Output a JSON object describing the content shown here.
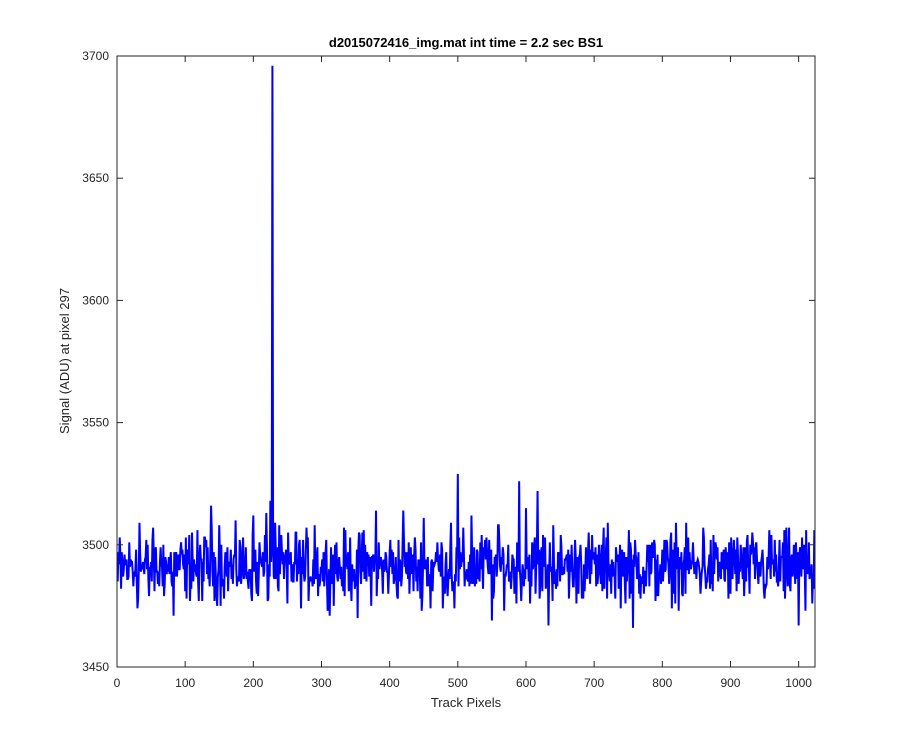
{
  "chart_data": {
    "type": "line",
    "title": "d2015072416_img.mat int time = 2.2 sec   BS1",
    "xlabel": "Track Pixels",
    "ylabel": "Signal (ADU) at pixel 297",
    "xlim": [
      0,
      1024
    ],
    "ylim": [
      3450,
      3700
    ],
    "xticks": [
      0,
      100,
      200,
      300,
      400,
      500,
      600,
      700,
      800,
      900,
      1000
    ],
    "yticks": [
      3450,
      3500,
      3550,
      3600,
      3650,
      3700
    ],
    "grid": false,
    "line_color": "#0000ff",
    "baseline_mean": 3493,
    "noise_range": [
      3466,
      3516
    ],
    "series": [
      {
        "x": [
          1,
          2,
          6,
          10,
          15,
          20,
          24,
          28,
          30,
          33,
          40,
          47,
          52,
          60,
          68,
          75,
          83,
          90,
          100,
          110,
          120,
          130,
          138,
          145,
          150,
          160,
          170,
          180,
          190,
          200,
          205,
          210,
          215,
          219,
          222,
          225,
          227,
          228,
          229,
          230,
          232,
          236,
          240,
          245,
          250,
          262,
          275,
          290,
          300,
          310,
          320,
          330,
          345,
          353,
          360,
          370,
          380,
          390,
          400,
          410,
          420,
          430,
          445,
          450,
          460,
          470,
          480,
          490,
          495,
          500,
          505,
          510,
          520,
          530,
          540,
          550,
          560,
          575,
          590,
          592,
          600,
          610,
          617,
          620,
          625,
          633,
          640,
          650,
          660,
          670,
          680,
          690,
          700,
          710,
          720,
          730,
          740,
          755,
          757,
          760,
          770,
          780,
          790,
          800,
          810,
          820,
          830,
          840,
          850,
          860,
          870,
          880,
          890,
          900,
          910,
          920,
          930,
          940,
          950,
          960,
          970,
          980,
          990,
          1000,
          1005,
          1010,
          1015,
          1020,
          1023
        ],
        "y": [
          3485,
          3497,
          3482,
          3490,
          3486,
          3494,
          3483,
          3498,
          3474,
          3509,
          3488,
          3479,
          3502,
          3484,
          3500,
          3489,
          3471,
          3496,
          3481,
          3505,
          3477,
          3499,
          3516,
          3487,
          3508,
          3493,
          3484,
          3502,
          3486,
          3512,
          3480,
          3496,
          3487,
          3513,
          3478,
          3518,
          3501,
          3696,
          3500,
          3487,
          3509,
          3483,
          3497,
          3486,
          3476,
          3505,
          3485,
          3508,
          3489,
          3476,
          3500,
          3483,
          3492,
          3470,
          3505,
          3487,
          3514,
          3480,
          3497,
          3484,
          3514,
          3490,
          3478,
          3511,
          3474,
          3501,
          3487,
          3509,
          3474,
          3529,
          3491,
          3483,
          3512,
          3486,
          3502,
          3469,
          3508,
          3485,
          3526,
          3485,
          3515,
          3490,
          3522,
          3478,
          3504,
          3467,
          3508,
          3485,
          3496,
          3483,
          3500,
          3486,
          3497,
          3484,
          3509,
          3488,
          3495,
          3480,
          3466,
          3502,
          3486,
          3500,
          3477,
          3498,
          3484,
          3509,
          3479,
          3497,
          3486,
          3507,
          3482,
          3494,
          3498,
          3480,
          3503,
          3479,
          3496,
          3488,
          3478,
          3504,
          3483,
          3478,
          3496,
          3467,
          3503,
          3473,
          3501,
          3476,
          3506
        ]
      }
    ]
  }
}
